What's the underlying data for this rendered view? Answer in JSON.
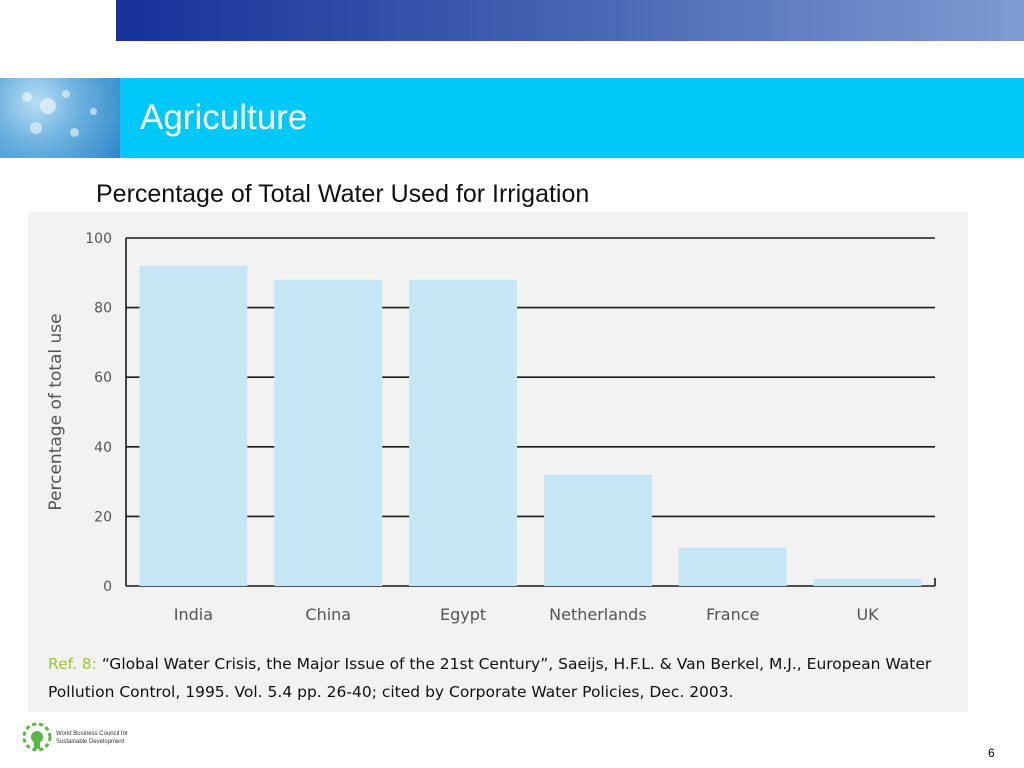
{
  "slide": {
    "title": "Agriculture",
    "number": "6",
    "organization": "World Business Council for Sustainable Development"
  },
  "reference": {
    "label": "Ref. 8:",
    "text": "“Global Water Crisis, the Major Issue of the 21st Century”, Saeijs, H.F.L. & Van Berkel, M.J., European Water Pollution Control, 1995. Vol. 5.4 pp. 26-40; cited by Corporate Water Policies, Dec. 2003."
  },
  "colors": {
    "header_bar": "#00c8f8",
    "top_band": "#2f4fa8",
    "bar_fill": "#c4e6f5",
    "ref_label": "#9ec62f",
    "logo_green": "#5ab446"
  },
  "icons": {
    "logo": "wbcsd-logo-icon",
    "header_image": "water-drops-image"
  },
  "chart_data": {
    "type": "bar",
    "title": "Percentage of Total Water Used for Irrigation",
    "xlabel": "",
    "ylabel": "Percentage of total use",
    "categories": [
      "India",
      "China",
      "Egypt",
      "Netherlands",
      "France",
      "UK"
    ],
    "values": [
      92,
      88,
      88,
      32,
      11,
      2
    ],
    "ylim": [
      0,
      100
    ],
    "yticks": [
      0,
      20,
      40,
      60,
      80,
      100
    ],
    "grid": true,
    "legend": "none"
  }
}
